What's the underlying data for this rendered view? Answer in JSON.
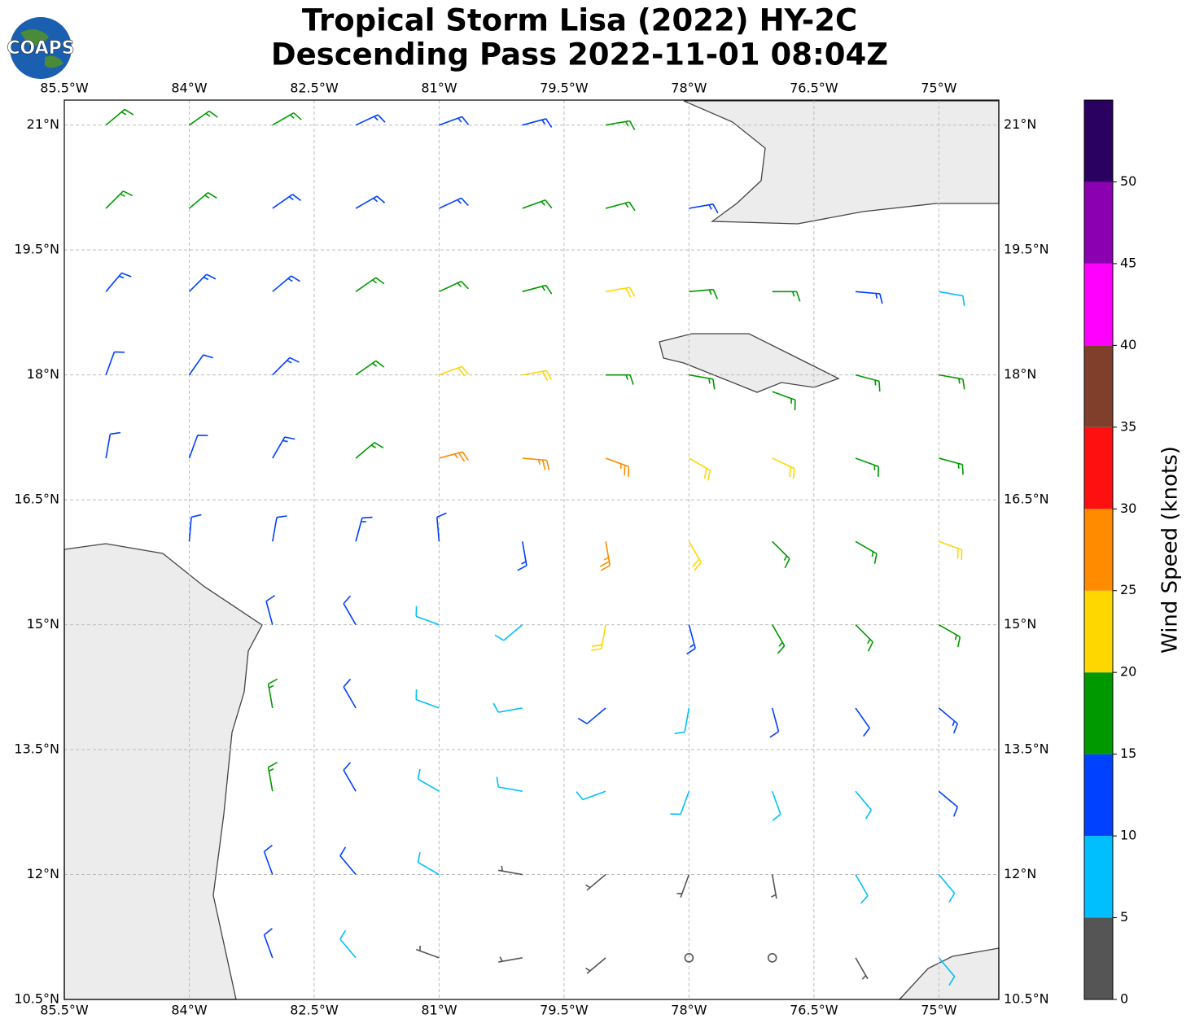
{
  "chart_data": {
    "type": "barbs",
    "title": "Tropical Storm Lisa (2022) HY-2C",
    "subtitle": "Descending Pass 2022-11-01 08:04Z",
    "logo": "COAPS",
    "xlim": [
      -85.5,
      -74.28
    ],
    "ylim": [
      10.5,
      21.3
    ],
    "xticks": [
      {
        "value": -85.5,
        "label": "85.5°W"
      },
      {
        "value": -84,
        "label": "84°W"
      },
      {
        "value": -82.5,
        "label": "82.5°W"
      },
      {
        "value": -81,
        "label": "81°W"
      },
      {
        "value": -79.5,
        "label": "79.5°W"
      },
      {
        "value": -78,
        "label": "78°W"
      },
      {
        "value": -76.5,
        "label": "76.5°W"
      },
      {
        "value": -75,
        "label": "75°W"
      }
    ],
    "yticks": [
      {
        "value": 10.5,
        "label": "10.5°N"
      },
      {
        "value": 12,
        "label": "12°N"
      },
      {
        "value": 13.5,
        "label": "13.5°N"
      },
      {
        "value": 15,
        "label": "15°N"
      },
      {
        "value": 16.5,
        "label": "16.5°N"
      },
      {
        "value": 18,
        "label": "18°N"
      },
      {
        "value": 19.5,
        "label": "19.5°N"
      },
      {
        "value": 21,
        "label": "21°N"
      }
    ],
    "grid": true,
    "colorbar": {
      "label": "Wind Speed (knots)",
      "lim": [
        0,
        55
      ],
      "ticks": [
        0,
        5,
        10,
        15,
        20,
        25,
        30,
        35,
        40,
        45,
        50
      ],
      "bins": [
        0,
        5,
        10,
        15,
        20,
        25,
        30,
        35,
        40,
        45,
        50,
        55
      ],
      "colors": [
        "#555555",
        "#00bfff",
        "#0040ff",
        "#009a00",
        "#ffd700",
        "#ff8c00",
        "#ff1010",
        "#7f3f2a",
        "#ff00ff",
        "#8b00b0",
        "#2a0060"
      ]
    },
    "barbs": [
      {
        "lon": -85,
        "lat": 21,
        "speed": 17,
        "direction": 50
      },
      {
        "lon": -84,
        "lat": 21,
        "speed": 17,
        "direction": 55
      },
      {
        "lon": -83,
        "lat": 21,
        "speed": 15,
        "direction": 60
      },
      {
        "lon": -82,
        "lat": 21,
        "speed": 13,
        "direction": 65
      },
      {
        "lon": -81,
        "lat": 21,
        "speed": 13,
        "direction": 70
      },
      {
        "lon": -80,
        "lat": 21,
        "speed": 13,
        "direction": 75
      },
      {
        "lon": -79,
        "lat": 21,
        "speed": 17,
        "direction": 80
      },
      {
        "lon": -85,
        "lat": 20,
        "speed": 17,
        "direction": 45
      },
      {
        "lon": -84,
        "lat": 20,
        "speed": 15,
        "direction": 50
      },
      {
        "lon": -83,
        "lat": 20,
        "speed": 13,
        "direction": 55
      },
      {
        "lon": -82,
        "lat": 20,
        "speed": 13,
        "direction": 60
      },
      {
        "lon": -81,
        "lat": 20,
        "speed": 13,
        "direction": 65
      },
      {
        "lon": -80,
        "lat": 20,
        "speed": 17,
        "direction": 70
      },
      {
        "lon": -79,
        "lat": 20,
        "speed": 17,
        "direction": 75
      },
      {
        "lon": -78,
        "lat": 20,
        "speed": 13,
        "direction": 80
      },
      {
        "lon": -85,
        "lat": 19,
        "speed": 13,
        "direction": 40
      },
      {
        "lon": -84,
        "lat": 19,
        "speed": 13,
        "direction": 45
      },
      {
        "lon": -83,
        "lat": 19,
        "speed": 13,
        "direction": 50
      },
      {
        "lon": -82,
        "lat": 19,
        "speed": 17,
        "direction": 55
      },
      {
        "lon": -81,
        "lat": 19,
        "speed": 17,
        "direction": 65
      },
      {
        "lon": -80,
        "lat": 19,
        "speed": 17,
        "direction": 75
      },
      {
        "lon": -79,
        "lat": 19,
        "speed": 22,
        "direction": 80
      },
      {
        "lon": -78,
        "lat": 19,
        "speed": 17,
        "direction": 85
      },
      {
        "lon": -77,
        "lat": 19,
        "speed": 17,
        "direction": 90
      },
      {
        "lon": -76,
        "lat": 19,
        "speed": 13,
        "direction": 95
      },
      {
        "lon": -75,
        "lat": 19,
        "speed": 8,
        "direction": 100
      },
      {
        "lon": -85,
        "lat": 18,
        "speed": 12,
        "direction": 20
      },
      {
        "lon": -84,
        "lat": 18,
        "speed": 12,
        "direction": 35
      },
      {
        "lon": -83,
        "lat": 18,
        "speed": 13,
        "direction": 45
      },
      {
        "lon": -82,
        "lat": 18,
        "speed": 17,
        "direction": 55
      },
      {
        "lon": -81,
        "lat": 18,
        "speed": 22,
        "direction": 70
      },
      {
        "lon": -80,
        "lat": 18,
        "speed": 22,
        "direction": 80
      },
      {
        "lon": -79,
        "lat": 18,
        "speed": 17,
        "direction": 90
      },
      {
        "lon": -78,
        "lat": 18,
        "speed": 17,
        "direction": 100
      },
      {
        "lon": -77,
        "lat": 17.8,
        "speed": 17,
        "direction": 110
      },
      {
        "lon": -76,
        "lat": 18,
        "speed": 17,
        "direction": 105
      },
      {
        "lon": -75,
        "lat": 18,
        "speed": 17,
        "direction": 100
      },
      {
        "lon": -85,
        "lat": 17,
        "speed": 12,
        "direction": 10
      },
      {
        "lon": -84,
        "lat": 17,
        "speed": 12,
        "direction": 20
      },
      {
        "lon": -83,
        "lat": 17,
        "speed": 13,
        "direction": 30
      },
      {
        "lon": -82,
        "lat": 17,
        "speed": 17,
        "direction": 50
      },
      {
        "lon": -81,
        "lat": 17,
        "speed": 27,
        "direction": 75
      },
      {
        "lon": -80,
        "lat": 17,
        "speed": 27,
        "direction": 95
      },
      {
        "lon": -79,
        "lat": 17,
        "speed": 27,
        "direction": 110
      },
      {
        "lon": -78,
        "lat": 17,
        "speed": 22,
        "direction": 120
      },
      {
        "lon": -77,
        "lat": 17,
        "speed": 22,
        "direction": 115
      },
      {
        "lon": -76,
        "lat": 17,
        "speed": 17,
        "direction": 110
      },
      {
        "lon": -75,
        "lat": 17,
        "speed": 17,
        "direction": 105
      },
      {
        "lon": -84,
        "lat": 16,
        "speed": 12,
        "direction": 5
      },
      {
        "lon": -83,
        "lat": 16,
        "speed": 12,
        "direction": 10
      },
      {
        "lon": -82,
        "lat": 16,
        "speed": 13,
        "direction": 15
      },
      {
        "lon": -81,
        "lat": 16,
        "speed": 10,
        "direction": 355
      },
      {
        "lon": -80,
        "lat": 16,
        "speed": 13,
        "direction": 170
      },
      {
        "lon": -79,
        "lat": 16,
        "speed": 27,
        "direction": 170
      },
      {
        "lon": -78,
        "lat": 16,
        "speed": 22,
        "direction": 150
      },
      {
        "lon": -77,
        "lat": 16,
        "speed": 17,
        "direction": 135
      },
      {
        "lon": -76,
        "lat": 16,
        "speed": 17,
        "direction": 120
      },
      {
        "lon": -75,
        "lat": 16,
        "speed": 22,
        "direction": 110
      },
      {
        "lon": -83,
        "lat": 15,
        "speed": 12,
        "direction": 345
      },
      {
        "lon": -82,
        "lat": 15,
        "speed": 12,
        "direction": 330
      },
      {
        "lon": -81,
        "lat": 15,
        "speed": 8,
        "direction": 290
      },
      {
        "lon": -80,
        "lat": 15,
        "speed": 8,
        "direction": 230
      },
      {
        "lon": -79,
        "lat": 15,
        "speed": 22,
        "direction": 190
      },
      {
        "lon": -78,
        "lat": 15,
        "speed": 13,
        "direction": 165
      },
      {
        "lon": -77,
        "lat": 15,
        "speed": 17,
        "direction": 150
      },
      {
        "lon": -76,
        "lat": 15,
        "speed": 17,
        "direction": 135
      },
      {
        "lon": -75,
        "lat": 15,
        "speed": 17,
        "direction": 120
      },
      {
        "lon": -83,
        "lat": 14,
        "speed": 17,
        "direction": 350
      },
      {
        "lon": -82,
        "lat": 14,
        "speed": 12,
        "direction": 330
      },
      {
        "lon": -81,
        "lat": 14,
        "speed": 8,
        "direction": 290
      },
      {
        "lon": -80,
        "lat": 14,
        "speed": 8,
        "direction": 260
      },
      {
        "lon": -79,
        "lat": 14,
        "speed": 12,
        "direction": 230
      },
      {
        "lon": -78,
        "lat": 14,
        "speed": 8,
        "direction": 190
      },
      {
        "lon": -77,
        "lat": 14,
        "speed": 12,
        "direction": 165
      },
      {
        "lon": -76,
        "lat": 14,
        "speed": 12,
        "direction": 145
      },
      {
        "lon": -75,
        "lat": 14,
        "speed": 13,
        "direction": 130
      },
      {
        "lon": -83,
        "lat": 13,
        "speed": 17,
        "direction": 350
      },
      {
        "lon": -82,
        "lat": 13,
        "speed": 12,
        "direction": 330
      },
      {
        "lon": -81,
        "lat": 13,
        "speed": 8,
        "direction": 300
      },
      {
        "lon": -80,
        "lat": 13,
        "speed": 8,
        "direction": 280
      },
      {
        "lon": -79,
        "lat": 13,
        "speed": 8,
        "direction": 250
      },
      {
        "lon": -78,
        "lat": 13,
        "speed": 8,
        "direction": 200
      },
      {
        "lon": -77,
        "lat": 13,
        "speed": 8,
        "direction": 160
      },
      {
        "lon": -76,
        "lat": 13,
        "speed": 8,
        "direction": 140
      },
      {
        "lon": -75,
        "lat": 13,
        "speed": 12,
        "direction": 130
      },
      {
        "lon": -83,
        "lat": 12,
        "speed": 12,
        "direction": 340
      },
      {
        "lon": -82,
        "lat": 12,
        "speed": 12,
        "direction": 320
      },
      {
        "lon": -81,
        "lat": 12,
        "speed": 8,
        "direction": 300
      },
      {
        "lon": -80,
        "lat": 12,
        "speed": 4,
        "direction": 280
      },
      {
        "lon": -79,
        "lat": 12,
        "speed": 3,
        "direction": 230
      },
      {
        "lon": -78,
        "lat": 12,
        "speed": 4,
        "direction": 200
      },
      {
        "lon": -77,
        "lat": 12,
        "speed": 4,
        "direction": 170
      },
      {
        "lon": -76,
        "lat": 12,
        "speed": 8,
        "direction": 150
      },
      {
        "lon": -75,
        "lat": 12,
        "speed": 8,
        "direction": 140
      },
      {
        "lon": -83,
        "lat": 11,
        "speed": 12,
        "direction": 340
      },
      {
        "lon": -82,
        "lat": 11,
        "speed": 8,
        "direction": 320
      },
      {
        "lon": -81,
        "lat": 11,
        "speed": 3,
        "direction": 290
      },
      {
        "lon": -80,
        "lat": 11,
        "speed": 3,
        "direction": 260
      },
      {
        "lon": -79,
        "lat": 11,
        "speed": 3,
        "direction": 230
      },
      {
        "lon": -78,
        "lat": 11,
        "speed": 0,
        "direction": 0
      },
      {
        "lon": -77,
        "lat": 11,
        "speed": 0,
        "direction": 0
      },
      {
        "lon": -76,
        "lat": 11,
        "speed": 4,
        "direction": 150
      },
      {
        "lon": -75,
        "lat": 11,
        "speed": 8,
        "direction": 140
      }
    ]
  }
}
